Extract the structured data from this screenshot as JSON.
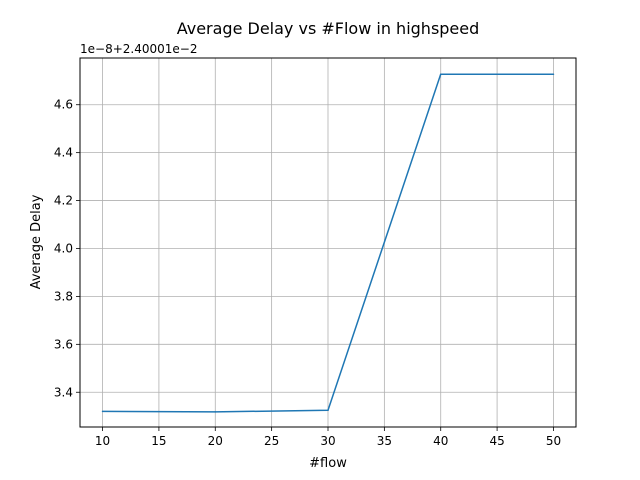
{
  "chart_data": {
    "type": "line",
    "title": "Average Delay vs #Flow in highspeed",
    "xlabel": "#flow",
    "ylabel": "Average Delay",
    "y_offset_label": "1e−8+2.40001e−2",
    "x_ticks": [
      "10",
      "15",
      "20",
      "25",
      "30",
      "35",
      "40",
      "45",
      "50"
    ],
    "y_ticks": [
      "3.4",
      "3.6",
      "3.8",
      "4.0",
      "4.2",
      "4.4",
      "4.6"
    ],
    "xlim": [
      8,
      52
    ],
    "ylim": [
      3.255,
      4.795
    ],
    "y_scale_note": "displayed value = (y - 0.0240001) / 1e-8",
    "grid": true,
    "series": [
      {
        "color": "#1f77b4",
        "x": [
          10,
          20,
          30,
          40,
          50
        ],
        "y": [
          3.32,
          3.318,
          3.325,
          4.727,
          4.727
        ]
      }
    ]
  }
}
